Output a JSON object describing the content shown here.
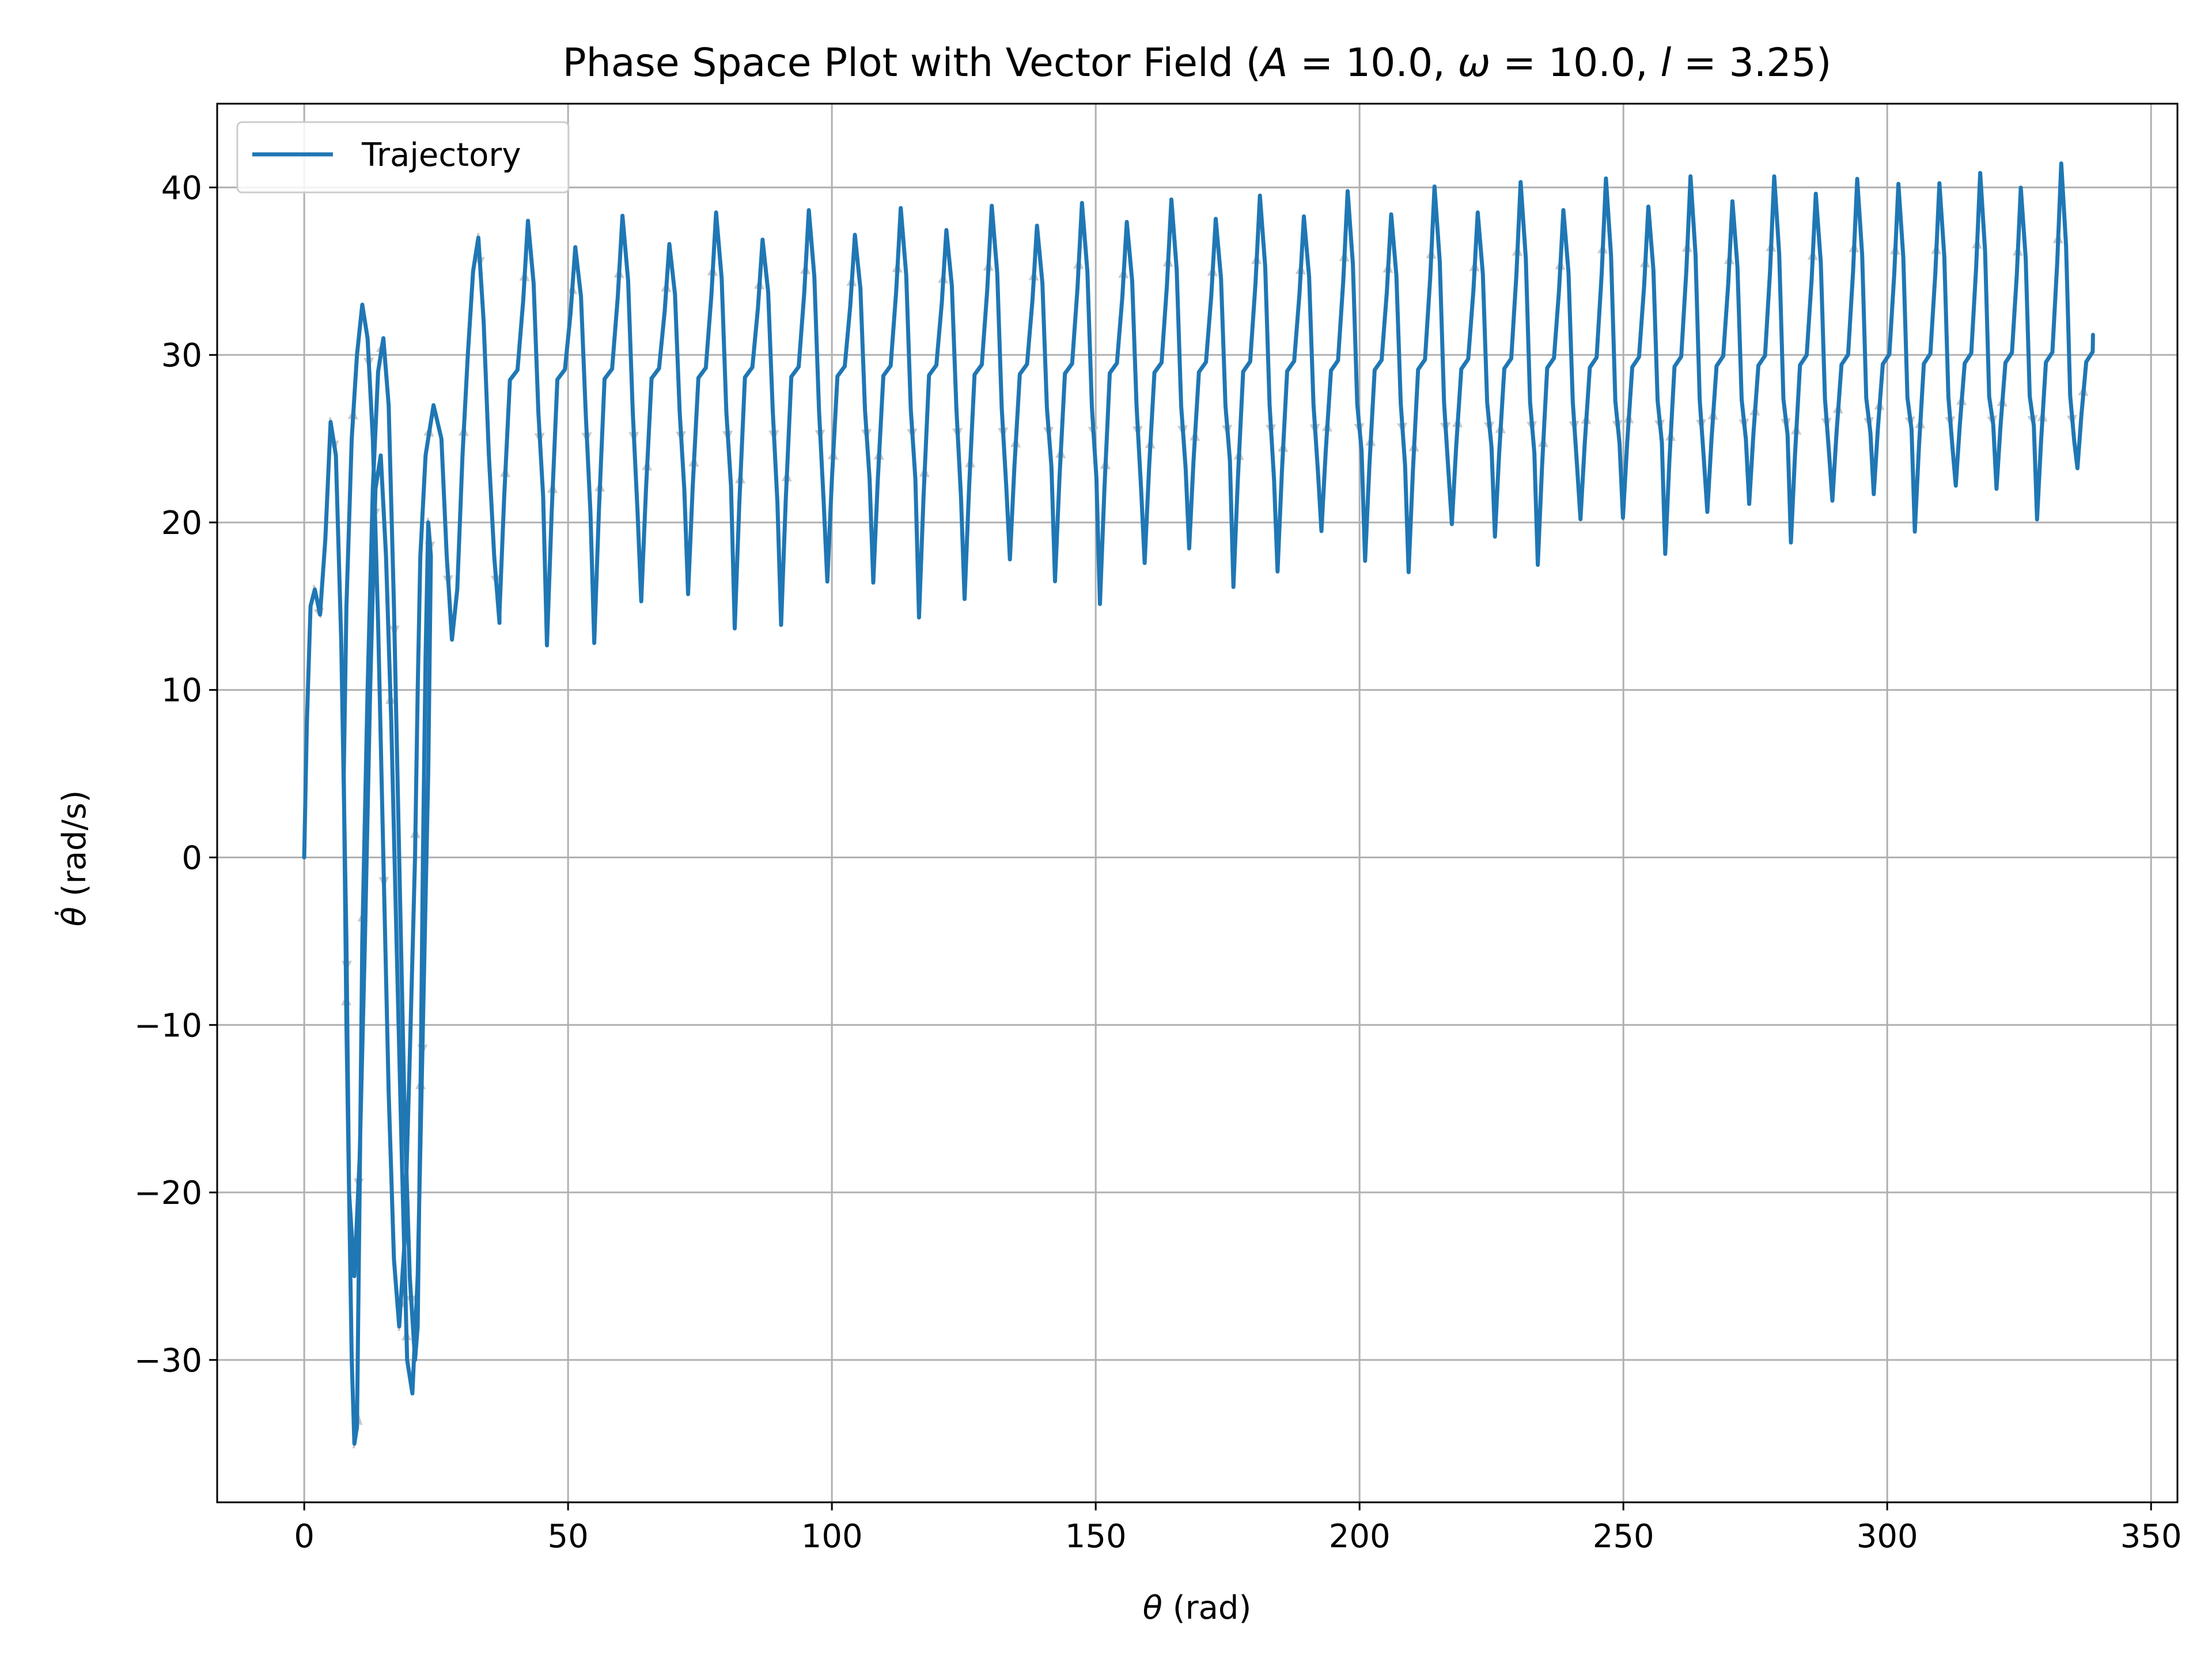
{
  "chart_data": {
    "type": "line",
    "title": "Phase Space Plot with Vector Field (A = 10.0, ω = 10.0, l = 3.25)",
    "title_parts": {
      "prefix": "Phase Space Plot with Vector Field (",
      "A_sym": "A",
      "A_val": " = 10.0, ",
      "w_sym": "ω",
      "w_val": " = 10.0, ",
      "l_sym": "l",
      "l_val": " = 3.25)"
    },
    "xlabel": "θ (rad)",
    "xlabel_parts": {
      "sym": "θ",
      "unit": " (rad)"
    },
    "ylabel": "θ̇ (rad/s)",
    "ylabel_parts": {
      "sym": "θ̇",
      "unit": " (rad/s)"
    },
    "xlim": [
      -16.5,
      355
    ],
    "ylim": [
      -38.5,
      45
    ],
    "xticks": [
      0,
      50,
      100,
      150,
      200,
      250,
      300,
      350
    ],
    "xtick_labels": [
      "0",
      "50",
      "100",
      "150",
      "200",
      "250",
      "300",
      "350"
    ],
    "yticks": [
      -30,
      -20,
      -10,
      0,
      10,
      20,
      30,
      40
    ],
    "ytick_labels": [
      "−30",
      "−20",
      "−10",
      "0",
      "10",
      "20",
      "30",
      "40"
    ],
    "grid": true,
    "legend": {
      "placement": "top-left",
      "entries": [
        "Trajectory"
      ]
    },
    "colors": {
      "line": "#1f77b4",
      "arrows": "#c8c8c8",
      "grid": "#b0b0b0",
      "axes": "#000000"
    },
    "series": [
      {
        "name": "Trajectory",
        "transient_points": [
          [
            0,
            0
          ],
          [
            0.5,
            8
          ],
          [
            1.2,
            15
          ],
          [
            2,
            16
          ],
          [
            3,
            14.5
          ],
          [
            4,
            19
          ],
          [
            5,
            26
          ],
          [
            6,
            24
          ],
          [
            7,
            13
          ],
          [
            8,
            -5
          ],
          [
            8.5,
            -20
          ],
          [
            9,
            -30
          ],
          [
            9.5,
            -35
          ],
          [
            10,
            -34
          ],
          [
            10.5,
            -20
          ],
          [
            11,
            -5
          ],
          [
            12,
            10
          ],
          [
            13,
            22
          ],
          [
            14,
            29
          ],
          [
            15,
            31
          ],
          [
            16,
            27
          ],
          [
            17,
            15
          ],
          [
            18,
            0
          ],
          [
            19,
            -15
          ],
          [
            20,
            -25
          ],
          [
            21,
            -30
          ],
          [
            21.5,
            -28
          ],
          [
            22,
            -15
          ],
          [
            22.5,
            0
          ],
          [
            23,
            12
          ],
          [
            23.5,
            20
          ],
          [
            24,
            18
          ],
          [
            23.5,
            5
          ],
          [
            22.5,
            -10
          ],
          [
            21.5,
            -25
          ],
          [
            20.5,
            -32
          ],
          [
            19.5,
            -30
          ],
          [
            18.5,
            -18
          ],
          [
            17.5,
            -5
          ],
          [
            16.5,
            8
          ],
          [
            15.5,
            18
          ],
          [
            14.5,
            24
          ],
          [
            13.5,
            22
          ],
          [
            12.5,
            10
          ],
          [
            11.5,
            -5
          ],
          [
            10.5,
            -18
          ],
          [
            9.5,
            -25
          ],
          [
            8.5,
            -20
          ],
          [
            8,
            -10
          ],
          [
            7.5,
            5
          ],
          [
            8,
            15
          ],
          [
            9,
            25
          ],
          [
            10,
            30
          ],
          [
            11,
            33
          ],
          [
            12,
            31
          ],
          [
            13,
            25
          ],
          [
            14,
            14
          ],
          [
            15,
            0
          ],
          [
            16,
            -14
          ],
          [
            17,
            -24
          ],
          [
            18,
            -28
          ],
          [
            19,
            -23
          ],
          [
            20,
            -12
          ],
          [
            21,
            0
          ],
          [
            21.5,
            10
          ],
          [
            22,
            18
          ],
          [
            23,
            24
          ],
          [
            24.5,
            27
          ],
          [
            26,
            25
          ],
          [
            27,
            18
          ],
          [
            28,
            13
          ],
          [
            29,
            16
          ],
          [
            30,
            24
          ],
          [
            31,
            30
          ],
          [
            32,
            35
          ],
          [
            33,
            37
          ],
          [
            34,
            32
          ],
          [
            35,
            24
          ],
          [
            36,
            18
          ],
          [
            37,
            14
          ]
        ],
        "periodic_rule": {
          "x_start": 37,
          "x_end": 339,
          "period_x0": 9.0,
          "period_x1": 7.6,
          "y_peak0": 37.2,
          "y_peak1": 40.8,
          "y_trough0": 13.5,
          "y_trough1": 22.0,
          "y_shoulder0": 28.5,
          "y_shoulder1": 29.6,
          "end_point": [
            339,
            31.2
          ]
        }
      }
    ]
  }
}
